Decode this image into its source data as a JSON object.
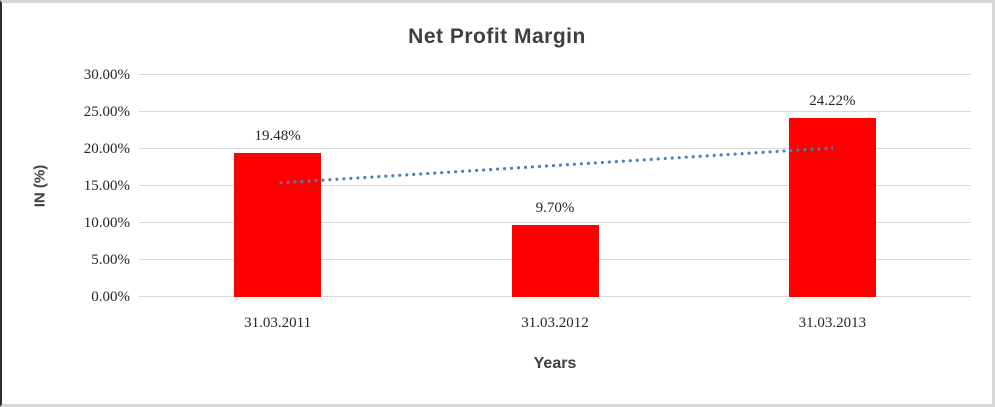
{
  "chart_data": {
    "type": "bar",
    "title": "Net Profit Margin",
    "categories": [
      "31.03.2011",
      "31.03.2012",
      "31.03.2013"
    ],
    "values": [
      19.48,
      9.7,
      24.22
    ],
    "data_labels": [
      "19.48%",
      "9.70%",
      "24.22%"
    ],
    "xlabel": "Years",
    "ylabel": "IN (%)",
    "ylim": [
      0,
      30
    ],
    "ytick_labels": [
      "0.00%",
      "5.00%",
      "10.00%",
      "15.00%",
      "20.00%",
      "25.00%",
      "30.00%"
    ],
    "grid": true,
    "legend": false,
    "gridline_color": "#d9d9d9",
    "bar_color": "#ff0000",
    "trendline": {
      "type": "linear",
      "style": "dotted",
      "color": "#4a7ebb",
      "start_value": 15.43,
      "end_value": 20.17
    }
  }
}
